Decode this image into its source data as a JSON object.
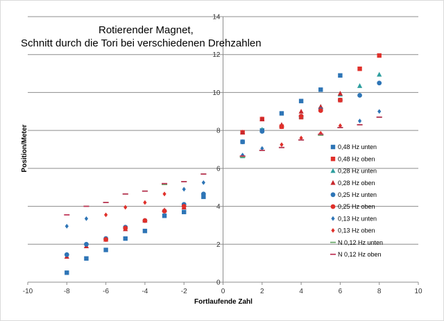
{
  "chart_data": {
    "type": "scatter",
    "title_lines": [
      "Rotierender Magnet,",
      "Schnitt durch die Tori bei verschiedenen Drehzahlen"
    ],
    "xlabel": "Fortlaufende Zahl",
    "ylabel": "Position/Meter",
    "xlim": [
      -10,
      10
    ],
    "ylim": [
      0,
      14
    ],
    "xticks": [
      -10,
      -8,
      -6,
      -4,
      -2,
      0,
      2,
      4,
      6,
      8,
      10
    ],
    "yticks": [
      0,
      2,
      4,
      6,
      8,
      10,
      12,
      14
    ],
    "grid": "horizontal",
    "legend_position": "right",
    "series": [
      {
        "name": "0,48 Hz unten",
        "marker": "square",
        "color": "#2e75b6",
        "x": [
          -8,
          -7,
          -6,
          -5,
          -4,
          -3,
          -2,
          -1,
          1,
          2,
          3,
          4,
          5,
          6
        ],
        "y": [
          0.5,
          1.25,
          1.7,
          2.3,
          2.7,
          3.5,
          3.7,
          4.5,
          7.4,
          8.0,
          8.9,
          9.55,
          10.15,
          10.9
        ]
      },
      {
        "name": "0,48 Hz oben",
        "marker": "square",
        "color": "#e0302a",
        "x": [
          1,
          2,
          3,
          4,
          5,
          6,
          7,
          8
        ],
        "y": [
          7.9,
          8.6,
          8.2,
          8.7,
          9.1,
          9.6,
          11.25,
          11.95
        ]
      },
      {
        "name": "0,28 Hz unten",
        "marker": "triangle",
        "color": "#2e9e9e",
        "x": [
          1,
          2,
          3,
          4,
          5,
          6,
          7,
          8
        ],
        "y": [
          6.65,
          8.05,
          8.25,
          8.75,
          9.25,
          9.9,
          10.35,
          10.95
        ]
      },
      {
        "name": "0,28 Hz oben",
        "marker": "triangle",
        "color": "#c8282d",
        "x": [
          -8,
          -7,
          -6,
          -5,
          -4,
          -3,
          -2,
          1,
          2,
          3,
          4,
          5,
          6
        ],
        "y": [
          1.35,
          1.9,
          2.25,
          2.8,
          3.25,
          3.8,
          3.95,
          7.9,
          8.6,
          8.3,
          9.0,
          9.25,
          9.95
        ]
      },
      {
        "name": "0,25 Hz unten",
        "marker": "circle",
        "color": "#2e75b6",
        "x": [
          -8,
          -7,
          -6,
          -5,
          -4,
          -3,
          -2,
          -1,
          1,
          2,
          4,
          5,
          6,
          7,
          8
        ],
        "y": [
          1.45,
          2.0,
          2.3,
          2.9,
          3.25,
          3.75,
          4.1,
          4.65,
          7.4,
          7.95,
          8.75,
          9.1,
          9.6,
          9.85,
          10.5
        ]
      },
      {
        "name": "0,25 Hz oben",
        "marker": "circle",
        "color": "#e0302a",
        "x": [
          -6,
          -5,
          -4,
          -3,
          -2,
          3,
          4,
          5,
          6
        ],
        "y": [
          2.25,
          2.85,
          3.25,
          3.75,
          4.0,
          8.2,
          8.75,
          9.05,
          9.6
        ]
      },
      {
        "name": "0,13 Hz unten",
        "marker": "diamond",
        "color": "#2e75b6",
        "x": [
          -8,
          -7,
          -2,
          -1,
          1,
          2,
          7,
          8
        ],
        "y": [
          2.95,
          3.35,
          4.9,
          5.25,
          6.7,
          7.05,
          8.5,
          9.0
        ]
      },
      {
        "name": "0,13 Hz oben",
        "marker": "diamond",
        "color": "#e0302a",
        "x": [
          -6,
          -5,
          -4,
          -3,
          3,
          4,
          5,
          6
        ],
        "y": [
          3.55,
          3.95,
          4.2,
          4.65,
          7.25,
          7.6,
          7.85,
          8.25
        ]
      },
      {
        "name": "N 0,12 Hz unten",
        "marker": "dash",
        "color": "#6aa86a",
        "x": [
          -7,
          -6,
          -5,
          -4,
          -3,
          -2,
          -1,
          1,
          2,
          3,
          4,
          5,
          6,
          7,
          8
        ],
        "y": [
          4.0,
          4.2,
          4.65,
          4.8,
          5.15,
          5.3,
          5.7,
          6.6,
          6.95,
          7.1,
          7.5,
          7.75,
          8.15,
          8.3,
          8.7
        ]
      },
      {
        "name": "N 0,12 Hz oben",
        "marker": "dash",
        "color": "#c0395a",
        "x": [
          -8,
          -7,
          -6,
          -5,
          -4,
          -3,
          -2,
          -1,
          1,
          2,
          3,
          4,
          5,
          6,
          7,
          8
        ],
        "y": [
          3.55,
          4.0,
          4.2,
          4.65,
          4.8,
          5.2,
          5.3,
          5.7,
          6.65,
          6.95,
          7.1,
          7.5,
          7.8,
          8.15,
          8.3,
          8.7
        ]
      }
    ]
  }
}
